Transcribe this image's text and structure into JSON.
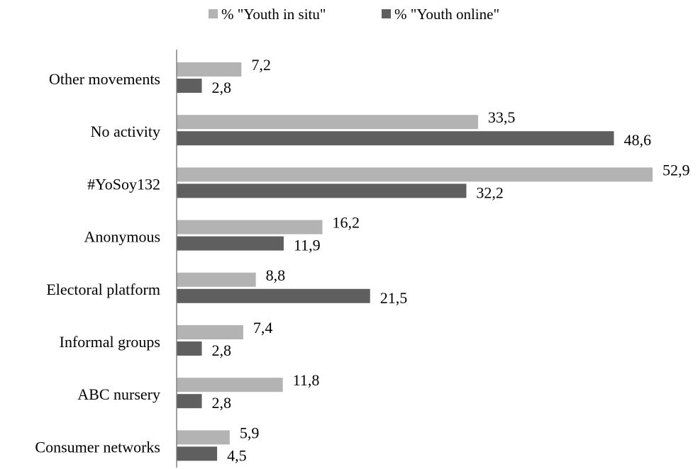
{
  "chart_data": {
    "type": "bar",
    "orientation": "horizontal",
    "categories": [
      "Other movements",
      "No activity",
      "#YoSoy132",
      "Anonymous",
      "Electoral platform",
      "Informal groups",
      "ABC nursery",
      "Consumer networks"
    ],
    "series": [
      {
        "name": "% \"Youth in situ\"",
        "color": "#b3b3b3",
        "values": [
          7.2,
          33.5,
          52.9,
          16.2,
          8.8,
          7.4,
          11.8,
          5.9
        ],
        "labels": [
          "7,2",
          "33,5",
          "52,9",
          "16,2",
          "8,8",
          "7,4",
          "11,8",
          "5,9"
        ]
      },
      {
        "name": "% \"Youth online\"",
        "color": "#5f5f5f",
        "values": [
          2.8,
          48.6,
          32.2,
          11.9,
          21.5,
          2.8,
          2.8,
          4.5
        ],
        "labels": [
          "2,8",
          "48,6",
          "32,2",
          "11,9",
          "21,5",
          "2,8",
          "2,8",
          "4,5"
        ]
      }
    ],
    "xlim": [
      0,
      52.9
    ],
    "grid": false,
    "legend_position": "top-center",
    "axis_color": "#808080"
  }
}
